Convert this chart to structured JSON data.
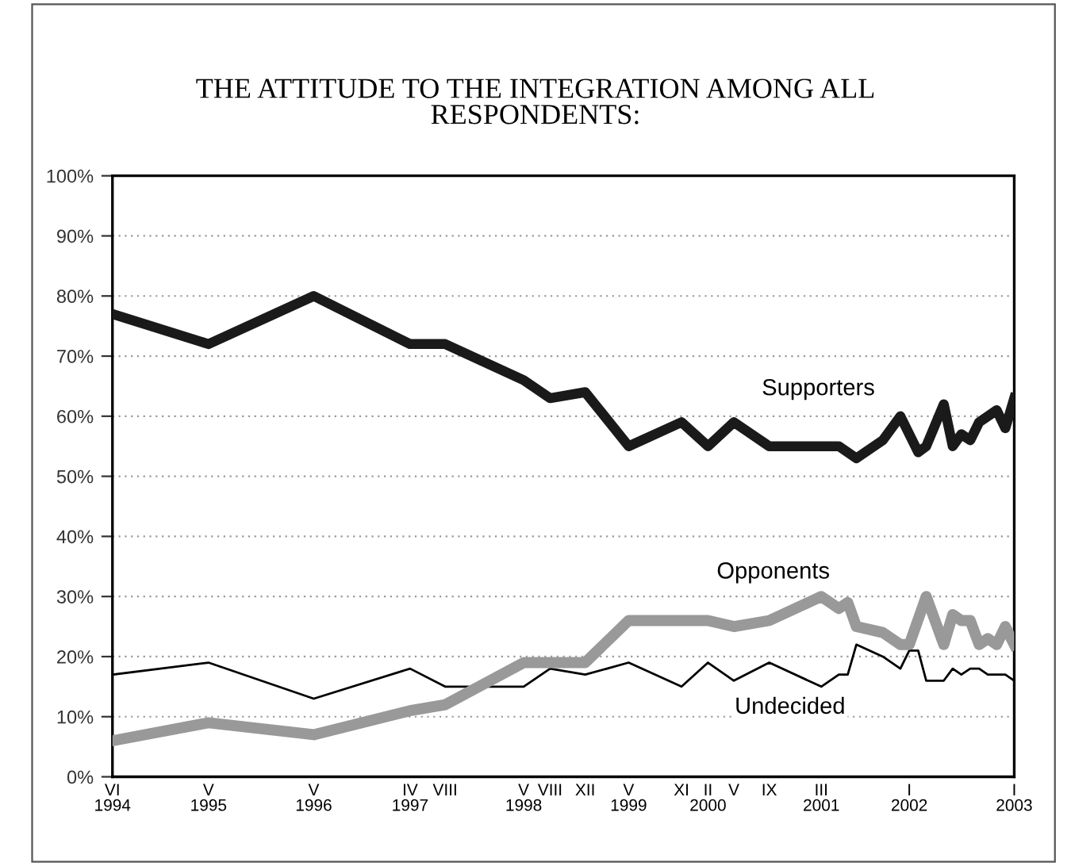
{
  "chart_data": {
    "type": "line",
    "title": "THE ATTITUDE TO THE INTEGRATION AMONG ALL\nRESPONDENTS:",
    "xlim": [
      "1994-06",
      "2003-01"
    ],
    "xticks": [
      {
        "value": "1994-06",
        "label": "VI\n1994"
      },
      {
        "value": "1995-05",
        "label": "V\n1995"
      },
      {
        "value": "1996-05",
        "label": "V\n1996"
      },
      {
        "value": "1997-04",
        "label": "IV\n1997"
      },
      {
        "value": "1997-08",
        "label": "VIII"
      },
      {
        "value": "1998-05",
        "label": "V\n1998"
      },
      {
        "value": "1998-08",
        "label": "VIII"
      },
      {
        "value": "1998-12",
        "label": "XII"
      },
      {
        "value": "1999-05",
        "label": "V\n1999"
      },
      {
        "value": "1999-11",
        "label": "XI"
      },
      {
        "value": "2000-02",
        "label": "II\n2000"
      },
      {
        "value": "2000-05",
        "label": "V"
      },
      {
        "value": "2000-09",
        "label": "IX"
      },
      {
        "value": "2001-03",
        "label": "III\n2001"
      },
      {
        "value": "2002-01",
        "label": "I\n2002"
      },
      {
        "value": "2003-01",
        "label": "I\n2003"
      }
    ],
    "ylim": [
      0,
      100
    ],
    "yticks": [
      {
        "value": 0,
        "label": "0%"
      },
      {
        "value": 10,
        "label": "10%"
      },
      {
        "value": 20,
        "label": "20%"
      },
      {
        "value": 30,
        "label": "30%"
      },
      {
        "value": 40,
        "label": "40%"
      },
      {
        "value": 50,
        "label": "50%"
      },
      {
        "value": 60,
        "label": "60%"
      },
      {
        "value": 70,
        "label": "70%"
      },
      {
        "value": 80,
        "label": "80%"
      },
      {
        "value": 90,
        "label": "90%"
      },
      {
        "value": 100,
        "label": "100%"
      }
    ],
    "grid": "y",
    "legend": false,
    "marker": "none",
    "line_style": "solid",
    "series": [
      {
        "name": "Supporters",
        "color": "#1a1a1a",
        "x": [
          "1994-06",
          "1995-05",
          "1996-05",
          "1997-04",
          "1997-08",
          "1998-05",
          "1998-08",
          "1998-12",
          "1999-05",
          "1999-11",
          "2000-02",
          "2000-05",
          "2000-09",
          "2001-03",
          "2001-05",
          "2001-07",
          "2001-10",
          "2001-12",
          "2002-02",
          "2002-03",
          "2002-05",
          "2002-06",
          "2002-07",
          "2002-08",
          "2002-09",
          "2002-11",
          "2002-12",
          "2003-01"
        ],
        "values": [
          77,
          72,
          80,
          72,
          72,
          66,
          63,
          64,
          55,
          59,
          55,
          59,
          55,
          55,
          55,
          53,
          56,
          60,
          54,
          55,
          62,
          55,
          57,
          56,
          59,
          61,
          58,
          63
        ]
      },
      {
        "name": "Opponents",
        "color": "#999999",
        "x": [
          "1994-06",
          "1995-05",
          "1996-05",
          "1997-04",
          "1997-08",
          "1998-05",
          "1998-08",
          "1998-12",
          "1999-05",
          "1999-11",
          "2000-02",
          "2000-05",
          "2000-09",
          "2001-03",
          "2001-05",
          "2001-06",
          "2001-07",
          "2001-10",
          "2001-12",
          "2002-01",
          "2002-03",
          "2002-05",
          "2002-06",
          "2002-07",
          "2002-08",
          "2002-09",
          "2002-10",
          "2002-11",
          "2002-12",
          "2003-01"
        ],
        "values": [
          6,
          9,
          7,
          11,
          12,
          19,
          19,
          19,
          26,
          26,
          26,
          25,
          26,
          30,
          28,
          29,
          25,
          24,
          22,
          22,
          30,
          22,
          27,
          26,
          26,
          22,
          23,
          22,
          25,
          22
        ]
      },
      {
        "name": "Undecided",
        "color": "#000000",
        "x": [
          "1994-06",
          "1995-05",
          "1996-05",
          "1997-04",
          "1997-08",
          "1998-05",
          "1998-08",
          "1998-12",
          "1999-05",
          "1999-11",
          "2000-02",
          "2000-05",
          "2000-09",
          "2001-03",
          "2001-05",
          "2001-06",
          "2001-07",
          "2001-10",
          "2001-12",
          "2002-01",
          "2002-02",
          "2002-03",
          "2002-05",
          "2002-06",
          "2002-07",
          "2002-08",
          "2002-09",
          "2002-10",
          "2002-12",
          "2003-01"
        ],
        "values": [
          17,
          19,
          13,
          18,
          15,
          15,
          18,
          17,
          19,
          15,
          19,
          16,
          19,
          15,
          17,
          17,
          22,
          20,
          18,
          21,
          21,
          16,
          16,
          18,
          17,
          18,
          18,
          17,
          17,
          16
        ]
      }
    ]
  }
}
